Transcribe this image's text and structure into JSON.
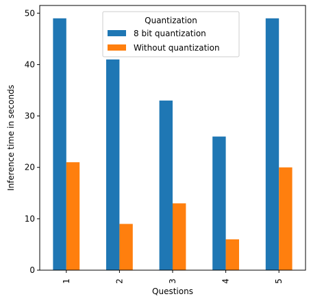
{
  "colors": {
    "series_1": "#1f77b4",
    "series_2": "#ff7f0e",
    "axis": "#000000",
    "legend_border": "#cccccc"
  },
  "chart_data": {
    "type": "bar",
    "categories": [
      "1",
      "2",
      "3",
      "4",
      "5"
    ],
    "series": [
      {
        "name": "8 bit quantization",
        "values": [
          49,
          41,
          33,
          26,
          49
        ]
      },
      {
        "name": "Without quantization",
        "values": [
          21,
          9,
          13,
          6,
          20
        ]
      }
    ],
    "xlabel": "Questions",
    "ylabel": "Inference time in seconds",
    "ylim": [
      0,
      51.5
    ],
    "yticks": [
      0,
      10,
      20,
      30,
      40,
      50
    ],
    "grid": false,
    "legend": {
      "title": "Quantization",
      "placement": "top-center"
    }
  }
}
